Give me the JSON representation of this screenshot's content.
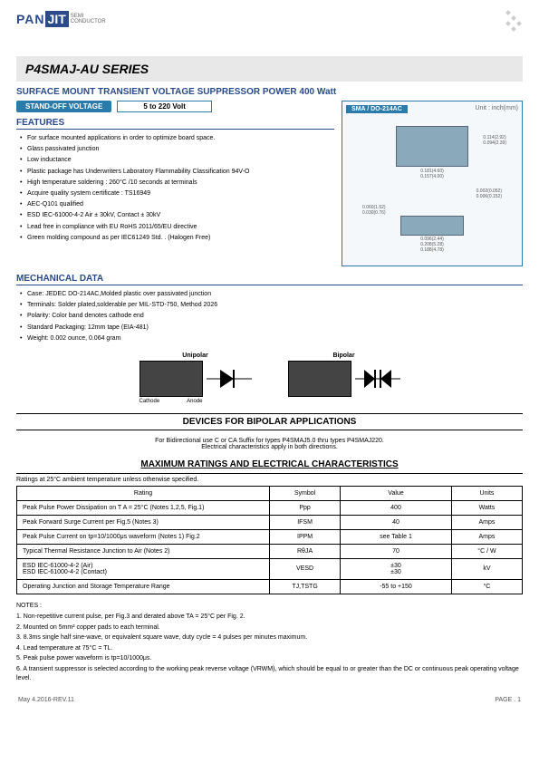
{
  "logo": {
    "pan": "PAN",
    "jit": "JIT",
    "sub": "SEMI\nCONDUCTOR"
  },
  "title": "P4SMAJ-AU SERIES",
  "subtitle": "SURFACE  MOUNT  TRANSIENT  VOLTAGE  SUPPRESSOR  POWER  400 Watt",
  "badges": {
    "standoff": "STAND-OFF  VOLTAGE",
    "range": "5 to 220 Volt",
    "pkg": "SMA / DO-214AC",
    "unit": "Unit : inch(mm)"
  },
  "features": {
    "title": "FEATURES",
    "items": [
      "For surface mounted applications in order to optimize board space.",
      "Glass passivated junction",
      "Low inductance",
      "Plastic package has Underwriters Laboratory Flammability Classification 94V-O",
      "High temperature soldering : 260°C /10 seconds at terminals",
      "Acquire quality system certificate : TS16949",
      "AEC-Q101 qualified",
      "ESD IEC-61000-4-2 Air ± 30kV, Contact ± 30kV",
      "Lead free in compliance with EU RoHS 2011/65/EU directive",
      "Green molding compound as per IEC61249 Std. . (Halogen Free)"
    ]
  },
  "mech": {
    "title": "MECHANICAL DATA",
    "items": [
      "Case: JEDEC DO-214AC,Molded plastic over passivated junction",
      "Terminals: Solder plated,solderable per MIL-STD-750, Method 2026",
      "Polarity: Color band denotes cathode end",
      "Standard Packaging: 12mm tape (EIA-481)",
      "Weight: 0.002 ounce, 0.064 gram"
    ]
  },
  "diagrams": {
    "uni": "Unipolar",
    "bi": "Bipolar",
    "cathode": "Cathode",
    "anode": "Anode"
  },
  "bipolar_section": "DEVICES  FOR  BIPOLAR  APPLICATIONS",
  "bipolar_text": "For Bidirectional use C or CA Suffix for types P4SMAJ5.0 thru types P4SMAJ220.\nElectrical characteristics apply in both directions.",
  "ratings": {
    "title": "MAXIMUM  RATINGS  AND  ELECTRICAL  CHARACTERISTICS",
    "note": "Ratings at 25°C ambient temperature unless otherwise specified.",
    "columns": [
      "Rating",
      "Symbol",
      "Value",
      "Units"
    ],
    "rows": [
      [
        "Peak Pulse Power Dissipation on T A = 25°C (Notes 1,2,5, Fig.1)",
        "Ppp",
        "400",
        "Watts"
      ],
      [
        "Peak Forward Surge Current per Fig.5 (Notes 3)",
        "IFSM",
        "40",
        "Amps"
      ],
      [
        "Peak Pulse Current on tp=10/1000μs waveform (Notes 1) Fig.2",
        "IPPM",
        "see Table 1",
        "Amps"
      ],
      [
        "Typical Thermal Resistance Junction to Air (Notes 2)",
        "RθJA",
        "70",
        "°C / W"
      ],
      [
        "ESD IEC-61000-4-2 (Air)\nESD IEC-61000-4-2 (Contact)",
        "VESD",
        "±30\n±30",
        "kV"
      ],
      [
        "Operating Junction and Storage Temperature Range",
        "TJ,TSTG",
        "-55 to +150",
        "°C"
      ]
    ]
  },
  "notes": {
    "title": "NOTES :",
    "items": [
      "1. Non-repetitive current pulse, per Fig.3 and derated above TA = 25°C per Fig. 2.",
      "2. Mounted on 5mm² copper pads to each terminal.",
      "3. 8.3ms single half sine-wave, or equivalent square wave, duty cycle = 4 pulses per minutes maximum.",
      "4. Lead temperature at 75°C = TL.",
      "5. Peak pulse power waveform is tp=10/1000μs.",
      "6.  A transient suppressor is selected according to the working peak reverse voltage (VRWM), which should be equal to or greater than the DC or continuous peak operating voltage level."
    ]
  },
  "footer": {
    "left": "May 4.2016-REV.11",
    "right": "PAGE .  1"
  },
  "pkg_dims": {
    "top": [
      "0.181(4.60)",
      "0.157(4.00)",
      "0.114(2.92)",
      "0.094(2.39)",
      "0.002(0.052)",
      "0.008(0.203)"
    ],
    "bottom": [
      "0.060(1.52)",
      "0.030(0.76)",
      "0.096(2.44)",
      "0.208(5.28)",
      "0.188(4.78)",
      "0.006(0.152)"
    ]
  },
  "colors": {
    "blue": "#2a4a8a",
    "teal": "#2a7aaa"
  }
}
